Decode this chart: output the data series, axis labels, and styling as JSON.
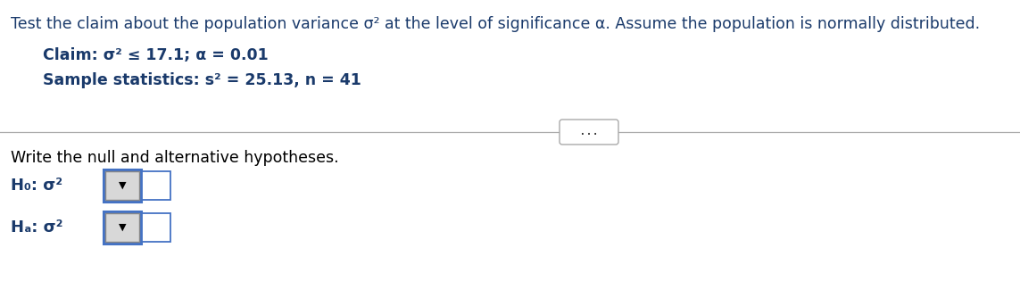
{
  "title_text": "Test the claim about the population variance σ² at the level of significance α. Assume the population is normally distributed.",
  "claim_line": "Claim: σ² ≤ 17.1; α = 0.01",
  "sample_line": "Sample statistics: s² = 25.13, n = 41",
  "question_text": "Write the null and alternative hypotheses.",
  "H0_label": "H₀: σ²",
  "Ha_label": "Hₐ: σ²",
  "text_color": "#1a3a6b",
  "title_color": "#1a3a6b",
  "box_border_color": "#4472c4",
  "bg_color": "#ffffff",
  "title_fontsize": 12.5,
  "body_fontsize": 12.5,
  "label_fontsize": 13
}
